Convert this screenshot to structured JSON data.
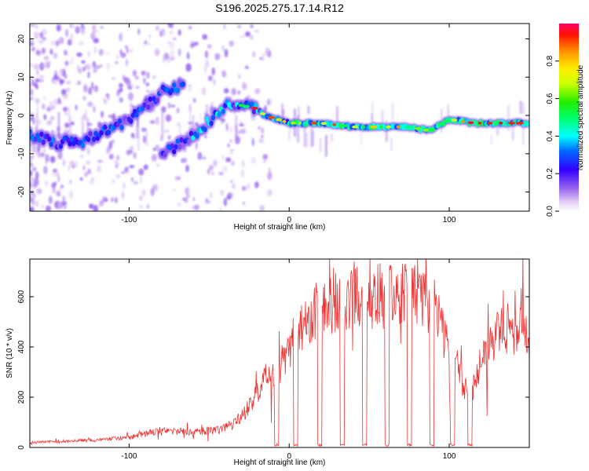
{
  "figure": {
    "title": "S196.2025.275.17.14.R12"
  },
  "chart_data": [
    {
      "type": "heatmap",
      "name": "spectrogram",
      "xlabel": "Height of straight line (km)",
      "ylabel": "Frequency (Hz)",
      "xlim": [
        -162,
        150
      ],
      "ylim": [
        -25,
        24
      ],
      "xticks": [
        -100,
        0,
        100
      ],
      "yticks": [
        -20,
        -10,
        0,
        10,
        20
      ],
      "colorbar": {
        "label": "Normalized spectral amplitude",
        "range": [
          0,
          1
        ],
        "ticks": [
          0.0,
          0.2,
          0.4,
          0.6,
          0.8
        ]
      },
      "ridge": [
        {
          "x": -162,
          "y": -5
        },
        {
          "x": -145,
          "y": -7
        },
        {
          "x": -130,
          "y": -7
        },
        {
          "x": -115,
          "y": -4
        },
        {
          "x": -100,
          "y": -1
        },
        {
          "x": -88,
          "y": 3
        },
        {
          "x": -80,
          "y": 6
        },
        {
          "x": -65,
          "y": 8
        },
        {
          "x": -80,
          "y": -10
        },
        {
          "x": -65,
          "y": -7
        },
        {
          "x": -55,
          "y": -4
        },
        {
          "x": -45,
          "y": 1
        },
        {
          "x": -35,
          "y": 3
        },
        {
          "x": -22,
          "y": 2
        },
        {
          "x": -15,
          "y": 0
        },
        {
          "x": 0,
          "y": -2
        },
        {
          "x": 20,
          "y": -2
        },
        {
          "x": 40,
          "y": -3
        },
        {
          "x": 60,
          "y": -3
        },
        {
          "x": 75,
          "y": -3
        },
        {
          "x": 88,
          "y": -4
        },
        {
          "x": 100,
          "y": -1
        },
        {
          "x": 115,
          "y": -2
        },
        {
          "x": 150,
          "y": -2
        }
      ]
    },
    {
      "type": "line",
      "name": "snr",
      "xlabel": "Height of straight line (km)",
      "ylabel": "SNR (10 * v/v)",
      "xlim": [
        -162,
        150
      ],
      "ylim": [
        0,
        750
      ],
      "xticks": [
        -100,
        0,
        100
      ],
      "yticks": [
        0,
        200,
        400,
        600
      ],
      "color": "#ee3333",
      "envelope": [
        {
          "x": -162,
          "y": 20
        },
        {
          "x": -140,
          "y": 25
        },
        {
          "x": -120,
          "y": 30
        },
        {
          "x": -100,
          "y": 40
        },
        {
          "x": -80,
          "y": 70
        },
        {
          "x": -60,
          "y": 60
        },
        {
          "x": -45,
          "y": 70
        },
        {
          "x": -35,
          "y": 90
        },
        {
          "x": -25,
          "y": 160
        },
        {
          "x": -15,
          "y": 270
        },
        {
          "x": -5,
          "y": 330
        },
        {
          "x": 0,
          "y": 400
        },
        {
          "x": 10,
          "y": 500
        },
        {
          "x": 25,
          "y": 580
        },
        {
          "x": 40,
          "y": 610
        },
        {
          "x": 60,
          "y": 600
        },
        {
          "x": 80,
          "y": 600
        },
        {
          "x": 90,
          "y": 560
        },
        {
          "x": 100,
          "y": 400
        },
        {
          "x": 108,
          "y": 260
        },
        {
          "x": 113,
          "y": 200
        },
        {
          "x": 118,
          "y": 300
        },
        {
          "x": 125,
          "y": 420
        },
        {
          "x": 135,
          "y": 480
        },
        {
          "x": 150,
          "y": 470
        }
      ],
      "dropouts_x": [
        -8,
        4,
        19,
        33,
        47,
        61,
        75,
        89,
        102,
        113
      ],
      "dropout_level": 5
    }
  ]
}
